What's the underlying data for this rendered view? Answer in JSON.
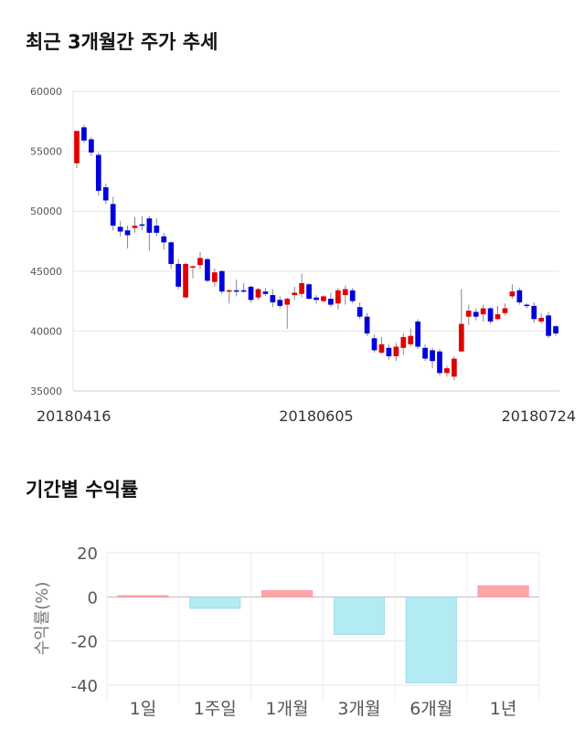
{
  "sections": {
    "price_title": "최근 3개월간 주가 추세",
    "returns_title": "기간별 수익률"
  },
  "colors": {
    "up": "#e00000",
    "down": "#0000dd",
    "positive_bar": "#ffa5a8",
    "negative_bar": "#b2ebf2",
    "grid": "#e6e6e6"
  },
  "chart_data": [
    {
      "type": "candlestick",
      "ylim": [
        35000,
        60000
      ],
      "y_ticks": [
        60000,
        55000,
        50000,
        45000,
        40000,
        35000
      ],
      "x_tick_labels": [
        {
          "index": 0,
          "label": "20180416"
        },
        {
          "index": 33,
          "label": "20180605"
        },
        {
          "index": 67,
          "label": "20180724"
        }
      ],
      "grid": true,
      "candles": [
        [
          54000,
          56700,
          53600,
          56700
        ],
        [
          57000,
          55900,
          55700,
          57200
        ],
        [
          56000,
          54900,
          54600,
          56200
        ],
        [
          54700,
          51700,
          51300,
          54900
        ],
        [
          52000,
          50900,
          50600,
          52300
        ],
        [
          50600,
          48800,
          48400,
          51200
        ],
        [
          48700,
          48300,
          47900,
          49200
        ],
        [
          48400,
          48000,
          46900,
          48800
        ],
        [
          48600,
          48800,
          48200,
          49500
        ],
        [
          48900,
          48800,
          48400,
          49600
        ],
        [
          49400,
          48200,
          46700,
          49600
        ],
        [
          48800,
          48200,
          47900,
          49400
        ],
        [
          47900,
          47400,
          46800,
          48200
        ],
        [
          47400,
          45600,
          45200,
          47500
        ],
        [
          45600,
          43700,
          43500,
          46000
        ],
        [
          42800,
          45600,
          42800,
          45700
        ],
        [
          45300,
          45400,
          44400,
          45500
        ],
        [
          45500,
          46100,
          45200,
          46600
        ],
        [
          46000,
          44200,
          44100,
          46100
        ],
        [
          44100,
          44900,
          43700,
          45200
        ],
        [
          45000,
          43300,
          43100,
          45100
        ],
        [
          43300,
          43400,
          42300,
          43500
        ],
        [
          43400,
          43300,
          42900,
          44300
        ],
        [
          43400,
          43300,
          43200,
          44000
        ],
        [
          43700,
          42600,
          42400,
          43800
        ],
        [
          42800,
          43500,
          42600,
          43600
        ],
        [
          43300,
          43100,
          42900,
          43600
        ],
        [
          43000,
          42400,
          42000,
          43500
        ],
        [
          42600,
          42100,
          41900,
          42900
        ],
        [
          42200,
          42700,
          40200,
          42800
        ],
        [
          43000,
          43200,
          42600,
          43700
        ],
        [
          43100,
          44000,
          42800,
          44800
        ],
        [
          43900,
          42700,
          42600,
          44000
        ],
        [
          42800,
          42600,
          42300,
          43000
        ],
        [
          42500,
          42900,
          42400,
          43000
        ],
        [
          42700,
          42200,
          42000,
          43200
        ],
        [
          42300,
          43400,
          41800,
          43600
        ],
        [
          43000,
          43500,
          42200,
          43800
        ],
        [
          43400,
          42500,
          42300,
          43600
        ],
        [
          42000,
          41200,
          41000,
          42400
        ],
        [
          41200,
          39800,
          39600,
          41500
        ],
        [
          39400,
          38400,
          38200,
          39700
        ],
        [
          38200,
          38900,
          38100,
          39500
        ],
        [
          38600,
          37900,
          37600,
          38900
        ],
        [
          37900,
          38700,
          37500,
          39000
        ],
        [
          38600,
          39500,
          38000,
          39800
        ],
        [
          38900,
          39600,
          38700,
          40200
        ],
        [
          40800,
          38700,
          38500,
          41000
        ],
        [
          38600,
          37700,
          37500,
          38900
        ],
        [
          38400,
          37500,
          36900,
          38600
        ],
        [
          38300,
          36500,
          36300,
          38500
        ],
        [
          36500,
          36900,
          36200,
          37100
        ],
        [
          36200,
          37700,
          35900,
          37900
        ],
        [
          38300,
          40600,
          38300,
          43500
        ],
        [
          41200,
          41700,
          40500,
          42200
        ],
        [
          41600,
          41200,
          40900,
          41900
        ],
        [
          41400,
          41900,
          40800,
          42200
        ],
        [
          41900,
          40800,
          40600,
          42000
        ],
        [
          41000,
          41400,
          40900,
          42100
        ],
        [
          41500,
          41900,
          41300,
          42300
        ],
        [
          42900,
          43300,
          42700,
          43900
        ],
        [
          43400,
          42400,
          42200,
          43600
        ],
        [
          42200,
          42100,
          41900,
          42300
        ],
        [
          42100,
          41000,
          40700,
          42400
        ],
        [
          40800,
          41100,
          40600,
          41500
        ],
        [
          41300,
          39600,
          39400,
          41600
        ],
        [
          40400,
          39800,
          39600,
          40500
        ]
      ]
    },
    {
      "type": "bar",
      "categories": [
        "1일",
        "1주일",
        "1개월",
        "3개월",
        "6개월",
        "1년"
      ],
      "values": [
        0.5,
        -5.2,
        2.8,
        -17.0,
        -39.0,
        5.0
      ],
      "ylabel": "수익률(%)",
      "ylim": [
        -40,
        20
      ],
      "y_ticks": [
        20,
        0,
        -20,
        -40
      ],
      "grid": true
    }
  ]
}
